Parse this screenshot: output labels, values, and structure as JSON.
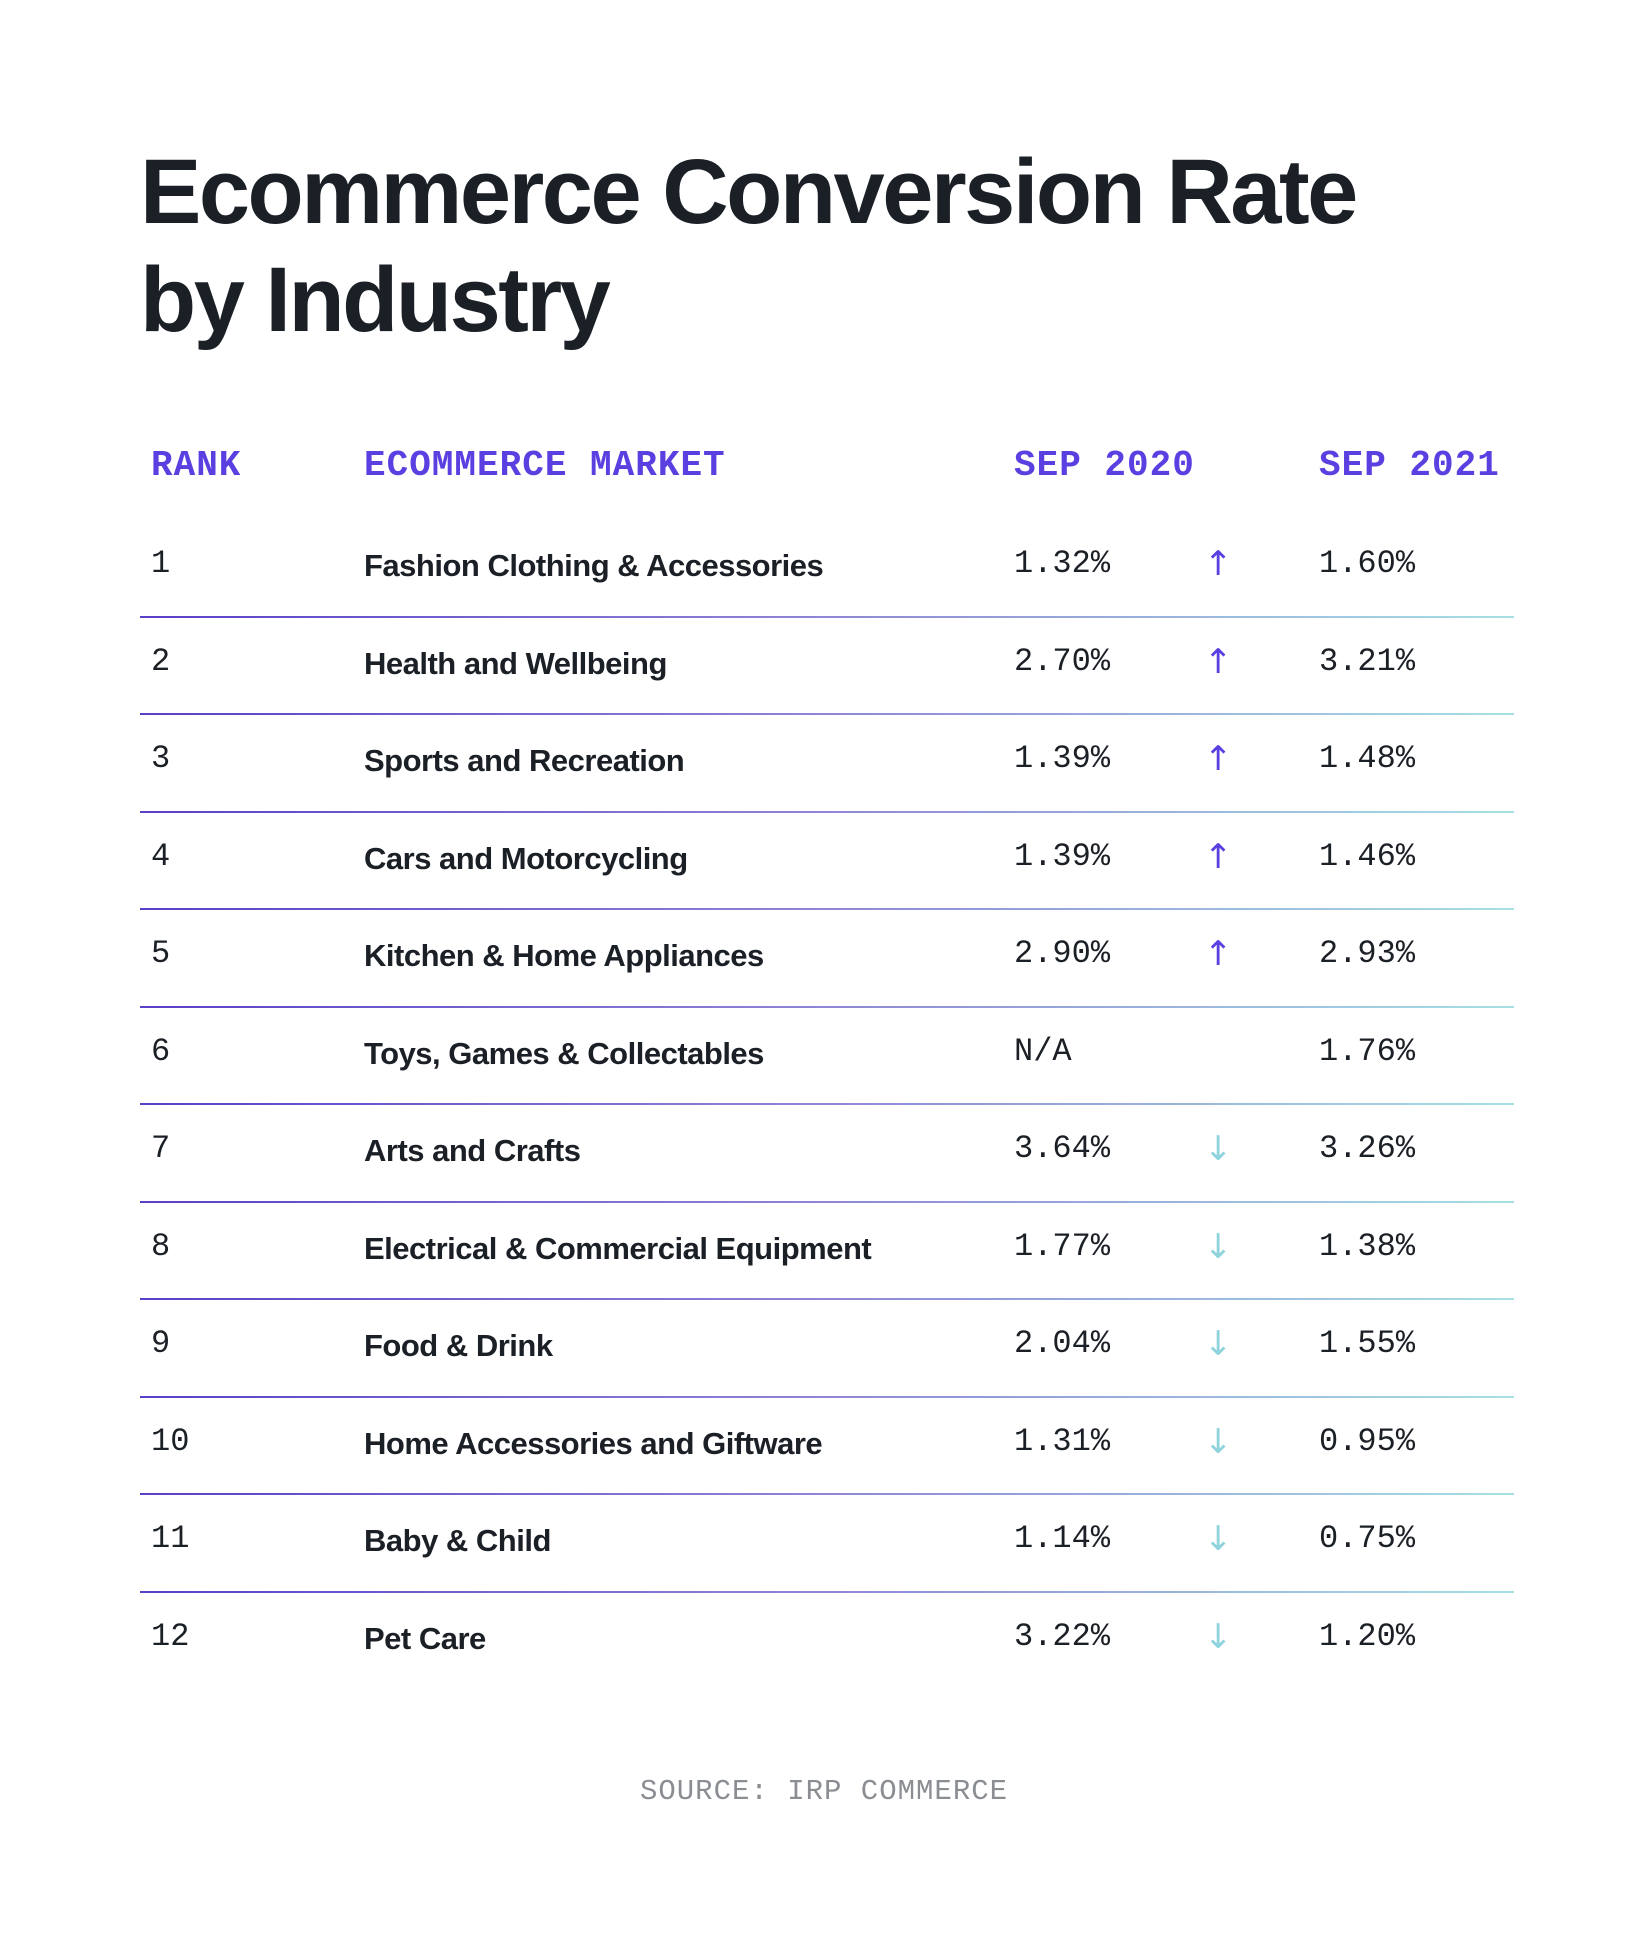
{
  "title_line1": "Ecommerce Conversion Rate",
  "title_line2": "by Industry",
  "headers": {
    "rank": "RANK",
    "market": "ECOMMERCE MARKET",
    "sep2020": "SEP 2020",
    "sep2021": "SEP 2021"
  },
  "colors": {
    "accent": "#5b3fe0",
    "up": "#5b3fe0",
    "down": "#8fd3dc",
    "text": "#1b1f26"
  },
  "rows": [
    {
      "rank": "1",
      "market": "Fashion Clothing & Accessories",
      "sep2020": "1.32%",
      "trend": "up",
      "arrow": "↑",
      "sep2021": "1.60%"
    },
    {
      "rank": "2",
      "market": "Health and Wellbeing",
      "sep2020": "2.70%",
      "trend": "up",
      "arrow": "↑",
      "sep2021": "3.21%"
    },
    {
      "rank": "3",
      "market": "Sports and Recreation",
      "sep2020": "1.39%",
      "trend": "up",
      "arrow": "↑",
      "sep2021": "1.48%"
    },
    {
      "rank": "4",
      "market": "Cars and Motorcycling",
      "sep2020": "1.39%",
      "trend": "up",
      "arrow": "↑",
      "sep2021": "1.46%"
    },
    {
      "rank": "5",
      "market": "Kitchen & Home Appliances",
      "sep2020": "2.90%",
      "trend": "up",
      "arrow": "↑",
      "sep2021": "2.93%"
    },
    {
      "rank": "6",
      "market": "Toys, Games & Collectables",
      "sep2020": "N/A",
      "trend": "none",
      "arrow": "",
      "sep2021": "1.76%"
    },
    {
      "rank": "7",
      "market": "Arts and Crafts",
      "sep2020": "3.64%",
      "trend": "down",
      "arrow": "↓",
      "sep2021": "3.26%"
    },
    {
      "rank": "8",
      "market": "Electrical & Commercial Equipment",
      "sep2020": "1.77%",
      "trend": "down",
      "arrow": "↓",
      "sep2021": "1.38%"
    },
    {
      "rank": "9",
      "market": "Food & Drink",
      "sep2020": "2.04%",
      "trend": "down",
      "arrow": "↓",
      "sep2021": "1.55%"
    },
    {
      "rank": "10",
      "market": "Home Accessories and Giftware",
      "sep2020": "1.31%",
      "trend": "down",
      "arrow": "↓",
      "sep2021": "0.95%"
    },
    {
      "rank": "11",
      "market": "Baby & Child",
      "sep2020": "1.14%",
      "trend": "down",
      "arrow": "↓",
      "sep2021": "0.75%"
    },
    {
      "rank": "12",
      "market": "Pet Care",
      "sep2020": "3.22%",
      "trend": "down",
      "arrow": "↓",
      "sep2021": "1.20%"
    }
  ],
  "source": "SOURCE: IRP COMMERCE"
}
